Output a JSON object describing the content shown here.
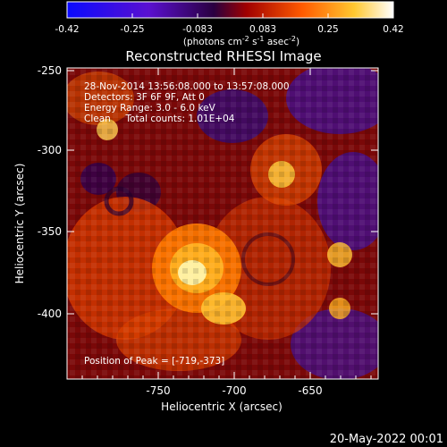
{
  "colorbar": {
    "ticks": [
      "-0.42",
      "-0.25",
      "-0.083",
      "0.083",
      "0.25",
      "0.42"
    ],
    "units_prefix": "(photons cm",
    "units_exp1": "-2",
    "units_mid": " s",
    "units_exp2": "-1",
    "units_mid2": " asec",
    "units_exp3": "-2",
    "units_suffix": ")",
    "colors": [
      "#1010ff",
      "#5a10d8",
      "#3a0050",
      "#c01000",
      "#ff6a00",
      "#ffd040",
      "#ffffe8"
    ]
  },
  "plot": {
    "title": "Reconstructed RHESSI Image",
    "info_lines": [
      "28-Nov-2014 13:56:08.000 to 13:57:08.000",
      "Detectors: 3F 6F 9F, Att 0",
      "Energy Range: 3.0 - 6.0 keV",
      "Clean     Total counts: 1.01E+04"
    ],
    "peak_label": "Position of Peak = [-719,-373]",
    "xlabel": "Heliocentric X (arcsec)",
    "ylabel": "Heliocentric Y (arcsec)",
    "xticks": [
      "-750",
      "-700",
      "-650"
    ],
    "yticks": [
      "-250",
      "-300",
      "-350",
      "-400"
    ]
  },
  "footer": {
    "date": "20-May-2022 00:01"
  }
}
